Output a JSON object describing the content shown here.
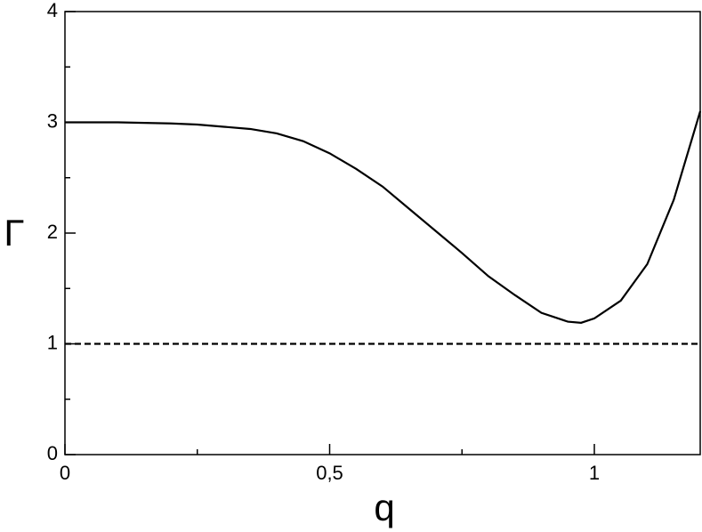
{
  "chart_data": {
    "type": "line",
    "xlabel": "q",
    "ylabel": "Γ",
    "xlim": [
      0,
      1.2
    ],
    "ylim": [
      0,
      4
    ],
    "xticks": [
      0,
      {
        "value": 0.5,
        "label": "0,5"
      },
      1
    ],
    "yticks": [
      0,
      1,
      2,
      3,
      4
    ],
    "xminorticks": [
      0.25,
      0.75
    ],
    "yminorticks": [
      0.5,
      1.5,
      2.5,
      3.5
    ],
    "series": [
      {
        "color": "#000000",
        "dash": false,
        "x": [
          0,
          0.1,
          0.2,
          0.25,
          0.3,
          0.35,
          0.4,
          0.45,
          0.5,
          0.55,
          0.6,
          0.65,
          0.7,
          0.75,
          0.8,
          0.85,
          0.9,
          0.95,
          0.975,
          1.0,
          1.05,
          1.1,
          1.15,
          1.2
        ],
        "values": [
          3.0,
          3.0,
          2.99,
          2.98,
          2.96,
          2.94,
          2.9,
          2.83,
          2.72,
          2.58,
          2.42,
          2.22,
          2.02,
          1.82,
          1.61,
          1.44,
          1.28,
          1.2,
          1.19,
          1.23,
          1.39,
          1.72,
          2.3,
          3.1
        ]
      },
      {
        "color": "#000000",
        "dash": true,
        "x": [
          0,
          1.2
        ],
        "values": [
          1,
          1
        ]
      }
    ]
  }
}
